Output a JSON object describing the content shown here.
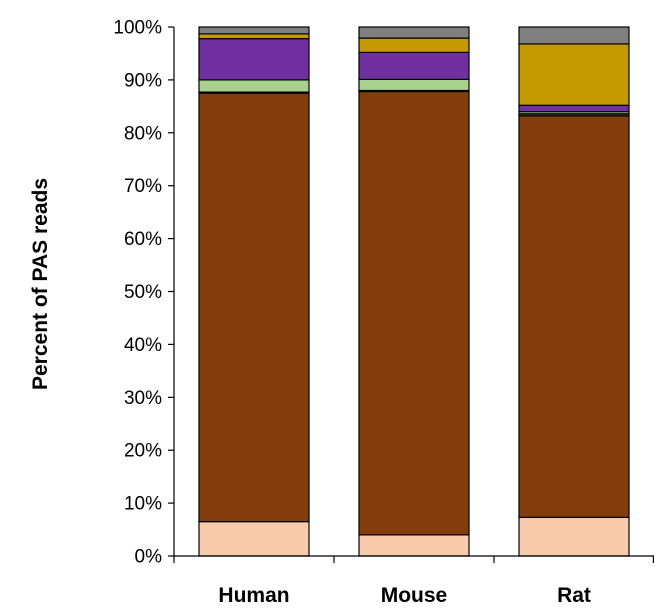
{
  "chart_data": {
    "type": "bar",
    "stacked": true,
    "categories": [
      "Human",
      "Mouse",
      "Rat"
    ],
    "ylabel": "Percent of PAS reads",
    "xlabel": "",
    "ylim": [
      0,
      100
    ],
    "yticks": [
      "0%",
      "10%",
      "20%",
      "30%",
      "40%",
      "50%",
      "60%",
      "70%",
      "80%",
      "90%",
      "100%"
    ],
    "grid": false,
    "legend": "none",
    "series": [
      {
        "color": "#f8cbad",
        "values": [
          6.5,
          4.0,
          7.3
        ]
      },
      {
        "color": "#843c0c",
        "values": [
          81.0,
          83.8,
          75.9
        ]
      },
      {
        "color": "#404040",
        "values": [
          0.2,
          0.2,
          0.4
        ]
      },
      {
        "color": "#a9d18e",
        "values": [
          2.3,
          2.1,
          0.4
        ]
      },
      {
        "color": "#7030a0",
        "values": [
          7.8,
          5.1,
          1.2
        ]
      },
      {
        "color": "#c49a00",
        "values": [
          0.9,
          2.7,
          11.6
        ]
      },
      {
        "color": "#808080",
        "values": [
          1.3,
          2.1,
          3.2
        ]
      }
    ]
  }
}
